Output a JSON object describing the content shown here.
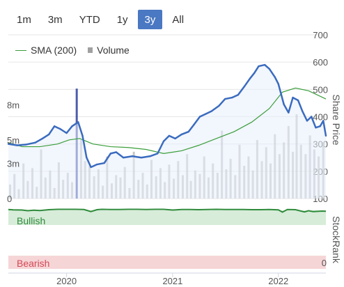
{
  "range_buttons": [
    {
      "label": "1m",
      "active": false
    },
    {
      "label": "3m",
      "active": false
    },
    {
      "label": "YTD",
      "active": false
    },
    {
      "label": "1y",
      "active": false
    },
    {
      "label": "3y",
      "active": true
    },
    {
      "label": "All",
      "active": false
    }
  ],
  "legend": {
    "sma_label": "SMA (200)",
    "volume_label": "Volume"
  },
  "colors": {
    "price": "#3a6bbf",
    "sma": "#3a9e3a",
    "volume": "#b4b4b4",
    "volume_highlight": "#2f3f9e",
    "bullish_band": "#d7ecd9",
    "bearish_band": "#f6d5d7",
    "stockrank_line": "#2e8b3a"
  },
  "chart_data": {
    "type": "line",
    "price_axis": {
      "title": "Share Price",
      "ticks": [
        100,
        200,
        300,
        400,
        500,
        600,
        700
      ],
      "range": [
        100,
        700
      ]
    },
    "volume_axis": {
      "ticks": [
        "0",
        "3m",
        "5m",
        "8m"
      ],
      "tick_values": [
        0,
        3,
        5,
        8
      ],
      "range": [
        0,
        14
      ]
    },
    "x_axis": {
      "ticks": [
        "2020",
        "2021",
        "2022"
      ],
      "tick_dates": [
        "2020-01-01",
        "2021-01-01",
        "2022-01-01"
      ],
      "range": [
        "2019-06-14",
        "2022-06-14"
      ]
    },
    "series": [
      {
        "name": "Price",
        "x": [
          "2019-06-14",
          "2019-07-15",
          "2019-08-15",
          "2019-09-15",
          "2019-10-10",
          "2019-11-01",
          "2019-11-20",
          "2019-12-10",
          "2020-01-01",
          "2020-01-20",
          "2020-02-10",
          "2020-02-25",
          "2020-03-10",
          "2020-03-25",
          "2020-04-15",
          "2020-05-10",
          "2020-06-01",
          "2020-06-20",
          "2020-07-15",
          "2020-08-15",
          "2020-09-15",
          "2020-10-15",
          "2020-11-10",
          "2020-12-01",
          "2020-12-20",
          "2021-01-10",
          "2021-02-01",
          "2021-02-25",
          "2021-03-15",
          "2021-04-05",
          "2021-04-25",
          "2021-05-15",
          "2021-06-10",
          "2021-07-01",
          "2021-07-25",
          "2021-08-15",
          "2021-09-05",
          "2021-09-25",
          "2021-10-10",
          "2021-10-25",
          "2021-11-15",
          "2021-12-01",
          "2021-12-20",
          "2022-01-01",
          "2022-01-20",
          "2022-02-05",
          "2022-02-20",
          "2022-03-10",
          "2022-03-25",
          "2022-04-10",
          "2022-04-25",
          "2022-05-10",
          "2022-05-25",
          "2022-06-05",
          "2022-06-14"
        ],
        "values": [
          300,
          295,
          298,
          305,
          320,
          335,
          365,
          355,
          340,
          365,
          380,
          330,
          250,
          215,
          225,
          230,
          265,
          270,
          250,
          255,
          250,
          255,
          265,
          310,
          330,
          320,
          335,
          345,
          370,
          400,
          410,
          420,
          440,
          465,
          470,
          480,
          510,
          540,
          560,
          585,
          590,
          575,
          545,
          520,
          445,
          415,
          470,
          460,
          420,
          385,
          400,
          360,
          365,
          385,
          330
        ]
      },
      {
        "name": "SMA (200)",
        "x": [
          "2019-06-14",
          "2019-08-01",
          "2019-10-01",
          "2019-12-01",
          "2020-01-10",
          "2020-02-15",
          "2020-04-01",
          "2020-06-01",
          "2020-08-01",
          "2020-10-01",
          "2020-12-01",
          "2021-02-01",
          "2021-04-01",
          "2021-06-01",
          "2021-08-01",
          "2021-10-01",
          "2021-12-01",
          "2022-01-15",
          "2022-03-01",
          "2022-04-15",
          "2022-06-14"
        ],
        "values": [
          305,
          290,
          290,
          300,
          315,
          320,
          300,
          290,
          287,
          280,
          265,
          275,
          295,
          320,
          345,
          380,
          430,
          490,
          505,
          495,
          465
        ]
      },
      {
        "name": "Volume",
        "x": [
          "2019-06-20",
          "2019-07-05",
          "2019-07-20",
          "2019-08-05",
          "2019-08-20",
          "2019-09-05",
          "2019-09-20",
          "2019-10-05",
          "2019-10-20",
          "2019-11-05",
          "2019-11-20",
          "2019-12-05",
          "2019-12-20",
          "2020-01-05",
          "2020-01-20",
          "2020-02-05",
          "2020-02-20",
          "2020-03-05",
          "2020-03-20",
          "2020-04-05",
          "2020-04-20",
          "2020-05-05",
          "2020-05-20",
          "2020-06-05",
          "2020-06-20",
          "2020-07-05",
          "2020-07-20",
          "2020-08-05",
          "2020-08-20",
          "2020-09-05",
          "2020-09-20",
          "2020-10-05",
          "2020-10-20",
          "2020-11-05",
          "2020-11-20",
          "2020-12-05",
          "2020-12-20",
          "2021-01-05",
          "2021-01-20",
          "2021-02-05",
          "2021-02-20",
          "2021-03-05",
          "2021-03-20",
          "2021-04-05",
          "2021-04-20",
          "2021-05-05",
          "2021-05-20",
          "2021-06-05",
          "2021-06-20",
          "2021-07-05",
          "2021-07-20",
          "2021-08-05",
          "2021-08-20",
          "2021-09-05",
          "2021-09-20",
          "2021-10-05",
          "2021-10-20",
          "2021-11-05",
          "2021-11-20",
          "2021-12-05",
          "2021-12-20",
          "2022-01-05",
          "2022-01-20",
          "2022-02-05",
          "2022-02-20",
          "2022-03-05",
          "2022-03-20",
          "2022-04-05",
          "2022-04-20",
          "2022-05-05",
          "2022-05-20",
          "2022-06-05"
        ],
        "values": [
          1.2,
          2.1,
          0.8,
          3.0,
          1.5,
          2.6,
          1.0,
          4.2,
          1.8,
          2.4,
          0.9,
          3.1,
          1.6,
          2.2,
          1.4,
          9.4,
          5.0,
          3.2,
          2.8,
          1.9,
          2.5,
          1.1,
          3.6,
          1.3,
          2.0,
          1.8,
          2.7,
          0.9,
          4.0,
          1.6,
          2.2,
          1.2,
          3.3,
          1.9,
          2.6,
          1.4,
          2.9,
          1.7,
          3.2,
          2.0,
          3.8,
          1.5,
          2.4,
          2.1,
          3.6,
          1.8,
          3.0,
          2.2,
          5.8,
          2.5,
          3.4,
          2.0,
          4.6,
          2.8,
          3.6,
          2.4,
          5.0,
          3.2,
          4.4,
          3.0,
          5.5,
          3.8,
          4.8,
          6.2,
          4.0,
          7.2,
          4.6,
          3.8,
          5.4,
          4.2,
          3.6,
          4.8
        ]
      },
      {
        "name": "StockRank",
        "x": [
          "2019-06-14",
          "2019-07-01",
          "2019-08-01",
          "2019-08-20",
          "2019-09-10",
          "2019-10-01",
          "2019-11-01",
          "2019-12-01",
          "2020-01-01",
          "2020-02-01",
          "2020-03-01",
          "2020-03-25",
          "2020-04-15",
          "2020-05-01",
          "2020-06-01",
          "2020-07-01",
          "2020-08-01",
          "2020-09-01",
          "2020-10-01",
          "2020-11-01",
          "2020-12-01",
          "2021-01-01",
          "2021-02-01",
          "2021-03-01",
          "2021-04-01",
          "2021-05-01",
          "2021-06-01",
          "2021-07-01",
          "2021-08-01",
          "2021-09-01",
          "2021-10-01",
          "2021-11-01",
          "2021-12-01",
          "2022-01-01",
          "2022-01-15",
          "2022-02-01",
          "2022-03-01",
          "2022-04-01",
          "2022-04-15",
          "2022-05-01",
          "2022-06-01",
          "2022-06-14"
        ],
        "values": [
          97,
          95,
          94,
          90,
          93,
          91,
          96,
          98,
          98,
          98,
          97,
          85,
          96,
          98,
          97,
          97,
          98,
          98,
          97,
          98,
          98,
          94,
          97,
          97,
          96,
          97,
          98,
          97,
          97,
          97,
          96,
          96,
          97,
          95,
          82,
          97,
          96,
          83,
          90,
          85,
          88,
          87
        ]
      }
    ],
    "stockrank_axis": {
      "title": "StockRank",
      "ticks": [
        "0"
      ],
      "band_labels": [
        "Bullish",
        "Bearish"
      ]
    },
    "grid": true
  }
}
